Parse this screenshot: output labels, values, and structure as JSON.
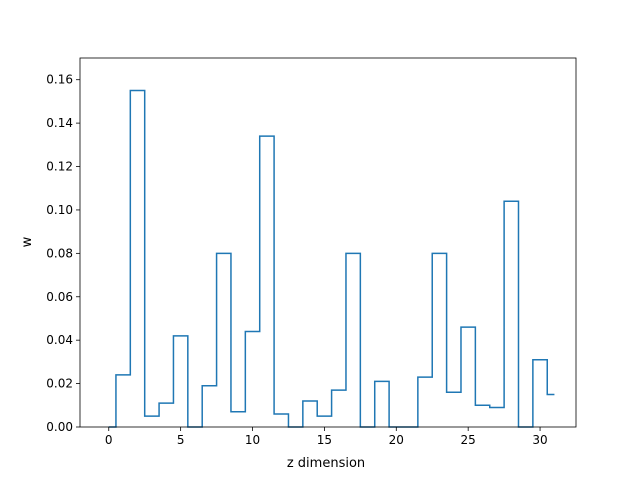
{
  "chart_data": {
    "type": "line",
    "drawstyle": "steps-mid",
    "xlabel": "z dimension",
    "ylabel": "w",
    "xlim": [
      -2,
      32.5
    ],
    "ylim": [
      0,
      0.17
    ],
    "xticks": [
      0,
      5,
      10,
      15,
      20,
      25,
      30
    ],
    "xtick_labels": [
      "0",
      "5",
      "10",
      "15",
      "20",
      "25",
      "30"
    ],
    "yticks": [
      0.0,
      0.02,
      0.04,
      0.06,
      0.08,
      0.1,
      0.12,
      0.14,
      0.16
    ],
    "ytick_labels": [
      "0.00",
      "0.02",
      "0.04",
      "0.06",
      "0.08",
      "0.10",
      "0.12",
      "0.14",
      "0.16"
    ],
    "grid": false,
    "series": [
      {
        "color": "#1f77b4",
        "x": [
          0,
          1,
          2,
          3,
          4,
          5,
          6,
          7,
          8,
          9,
          10,
          11,
          12,
          13,
          14,
          15,
          16,
          17,
          18,
          19,
          20,
          21,
          22,
          23,
          24,
          25,
          26,
          27,
          28,
          29,
          30,
          31
        ],
        "y": [
          0.0,
          0.024,
          0.155,
          0.005,
          0.011,
          0.042,
          0.0,
          0.019,
          0.08,
          0.007,
          0.044,
          0.134,
          0.006,
          0.0,
          0.012,
          0.005,
          0.017,
          0.08,
          0.0,
          0.021,
          0.0,
          0.0,
          0.023,
          0.08,
          0.016,
          0.046,
          0.01,
          0.009,
          0.104,
          0.0,
          0.031,
          0.015
        ]
      }
    ]
  }
}
